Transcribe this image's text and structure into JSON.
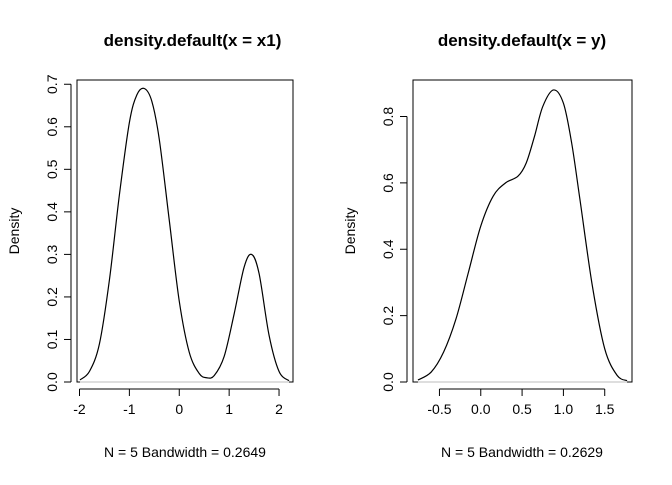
{
  "chart_data": [
    {
      "type": "line",
      "title": "density.default(x = x1)",
      "xlabel": "N = 5   Bandwidth = 0.2649",
      "ylabel": "Density",
      "xlim": [
        -2.05,
        2.28
      ],
      "ylim": [
        0,
        0.71
      ],
      "xticks": [
        -2,
        -1,
        0,
        1,
        2
      ],
      "xtick_labels": [
        "-2",
        "-1",
        "0",
        "1",
        "2"
      ],
      "yticks": [
        0,
        0.1,
        0.2,
        0.3,
        0.4,
        0.5,
        0.6,
        0.7
      ],
      "ytick_labels": [
        "0.0",
        "0.1",
        "0.2",
        "0.3",
        "0.4",
        "0.5",
        "0.6",
        "0.7"
      ],
      "baseline": 0,
      "x": [
        -1.99,
        -1.8,
        -1.6,
        -1.4,
        -1.2,
        -1.0,
        -0.85,
        -0.7,
        -0.55,
        -0.4,
        -0.2,
        0.0,
        0.2,
        0.4,
        0.55,
        0.7,
        0.9,
        1.1,
        1.3,
        1.45,
        1.6,
        1.8,
        2.0,
        2.2
      ],
      "y": [
        0.005,
        0.025,
        0.09,
        0.24,
        0.44,
        0.61,
        0.675,
        0.69,
        0.66,
        0.57,
        0.38,
        0.19,
        0.07,
        0.02,
        0.01,
        0.015,
        0.06,
        0.16,
        0.27,
        0.3,
        0.255,
        0.11,
        0.025,
        0.003
      ]
    },
    {
      "type": "line",
      "title": "density.default(x = y)",
      "xlabel": "N = 5   Bandwidth = 0.2629",
      "ylabel": "Density",
      "xlim": [
        -0.82,
        1.83
      ],
      "ylim": [
        0,
        0.91
      ],
      "xticks": [
        -0.5,
        0.0,
        0.5,
        1.0,
        1.5
      ],
      "xtick_labels": [
        "-0.5",
        "0.0",
        "0.5",
        "1.0",
        "1.5"
      ],
      "yticks": [
        0,
        0.2,
        0.4,
        0.6,
        0.8
      ],
      "ytick_labels": [
        "0.0",
        "0.2",
        "0.4",
        "0.6",
        "0.8"
      ],
      "baseline": 0,
      "x": [
        -0.76,
        -0.6,
        -0.45,
        -0.3,
        -0.15,
        0.0,
        0.15,
        0.3,
        0.45,
        0.55,
        0.65,
        0.75,
        0.88,
        1.0,
        1.1,
        1.2,
        1.35,
        1.5,
        1.65,
        1.77
      ],
      "y": [
        0.006,
        0.03,
        0.09,
        0.19,
        0.33,
        0.47,
        0.56,
        0.6,
        0.62,
        0.66,
        0.74,
        0.83,
        0.88,
        0.84,
        0.72,
        0.55,
        0.29,
        0.1,
        0.02,
        0.004
      ]
    }
  ]
}
